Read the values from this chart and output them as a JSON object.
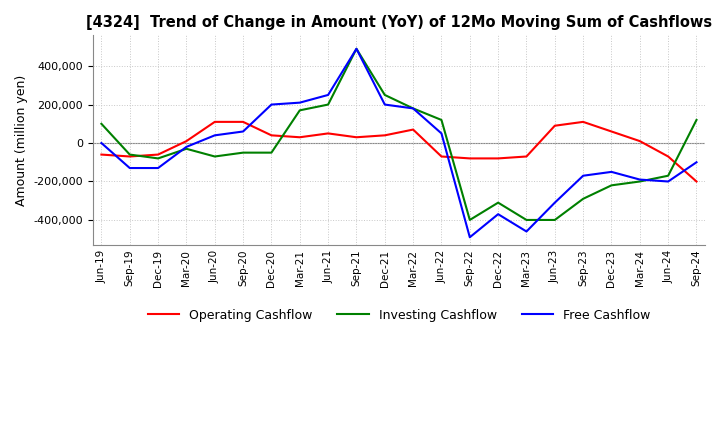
{
  "title": "[4324]  Trend of Change in Amount (YoY) of 12Mo Moving Sum of Cashflows",
  "ylabel": "Amount (million yen)",
  "background_color": "#ffffff",
  "grid_color": "#c8c8c8",
  "x_labels": [
    "Jun-19",
    "Sep-19",
    "Dec-19",
    "Mar-20",
    "Jun-20",
    "Sep-20",
    "Dec-20",
    "Mar-21",
    "Jun-21",
    "Sep-21",
    "Dec-21",
    "Mar-22",
    "Jun-22",
    "Sep-22",
    "Dec-22",
    "Mar-23",
    "Jun-23",
    "Sep-23",
    "Dec-23",
    "Mar-24",
    "Jun-24",
    "Sep-24"
  ],
  "operating_cashflow": [
    -60000,
    -70000,
    -60000,
    10000,
    110000,
    110000,
    40000,
    30000,
    50000,
    30000,
    40000,
    70000,
    -70000,
    -80000,
    -80000,
    -70000,
    90000,
    110000,
    60000,
    10000,
    -70000,
    -200000
  ],
  "investing_cashflow": [
    100000,
    -60000,
    -80000,
    -30000,
    -70000,
    -50000,
    -50000,
    170000,
    200000,
    490000,
    250000,
    180000,
    120000,
    -400000,
    -310000,
    -400000,
    -400000,
    -290000,
    -220000,
    -200000,
    -170000,
    120000
  ],
  "free_cashflow": [
    0,
    -130000,
    -130000,
    -20000,
    40000,
    60000,
    200000,
    210000,
    250000,
    490000,
    200000,
    180000,
    50000,
    -490000,
    -370000,
    -460000,
    -310000,
    -170000,
    -150000,
    -190000,
    -200000,
    -100000
  ],
  "ylim": [
    -530000,
    560000
  ],
  "yticks": [
    -400000,
    -200000,
    0,
    200000,
    400000
  ],
  "operating_color": "#ff0000",
  "investing_color": "#008000",
  "free_color": "#0000ff",
  "line_width": 1.5
}
